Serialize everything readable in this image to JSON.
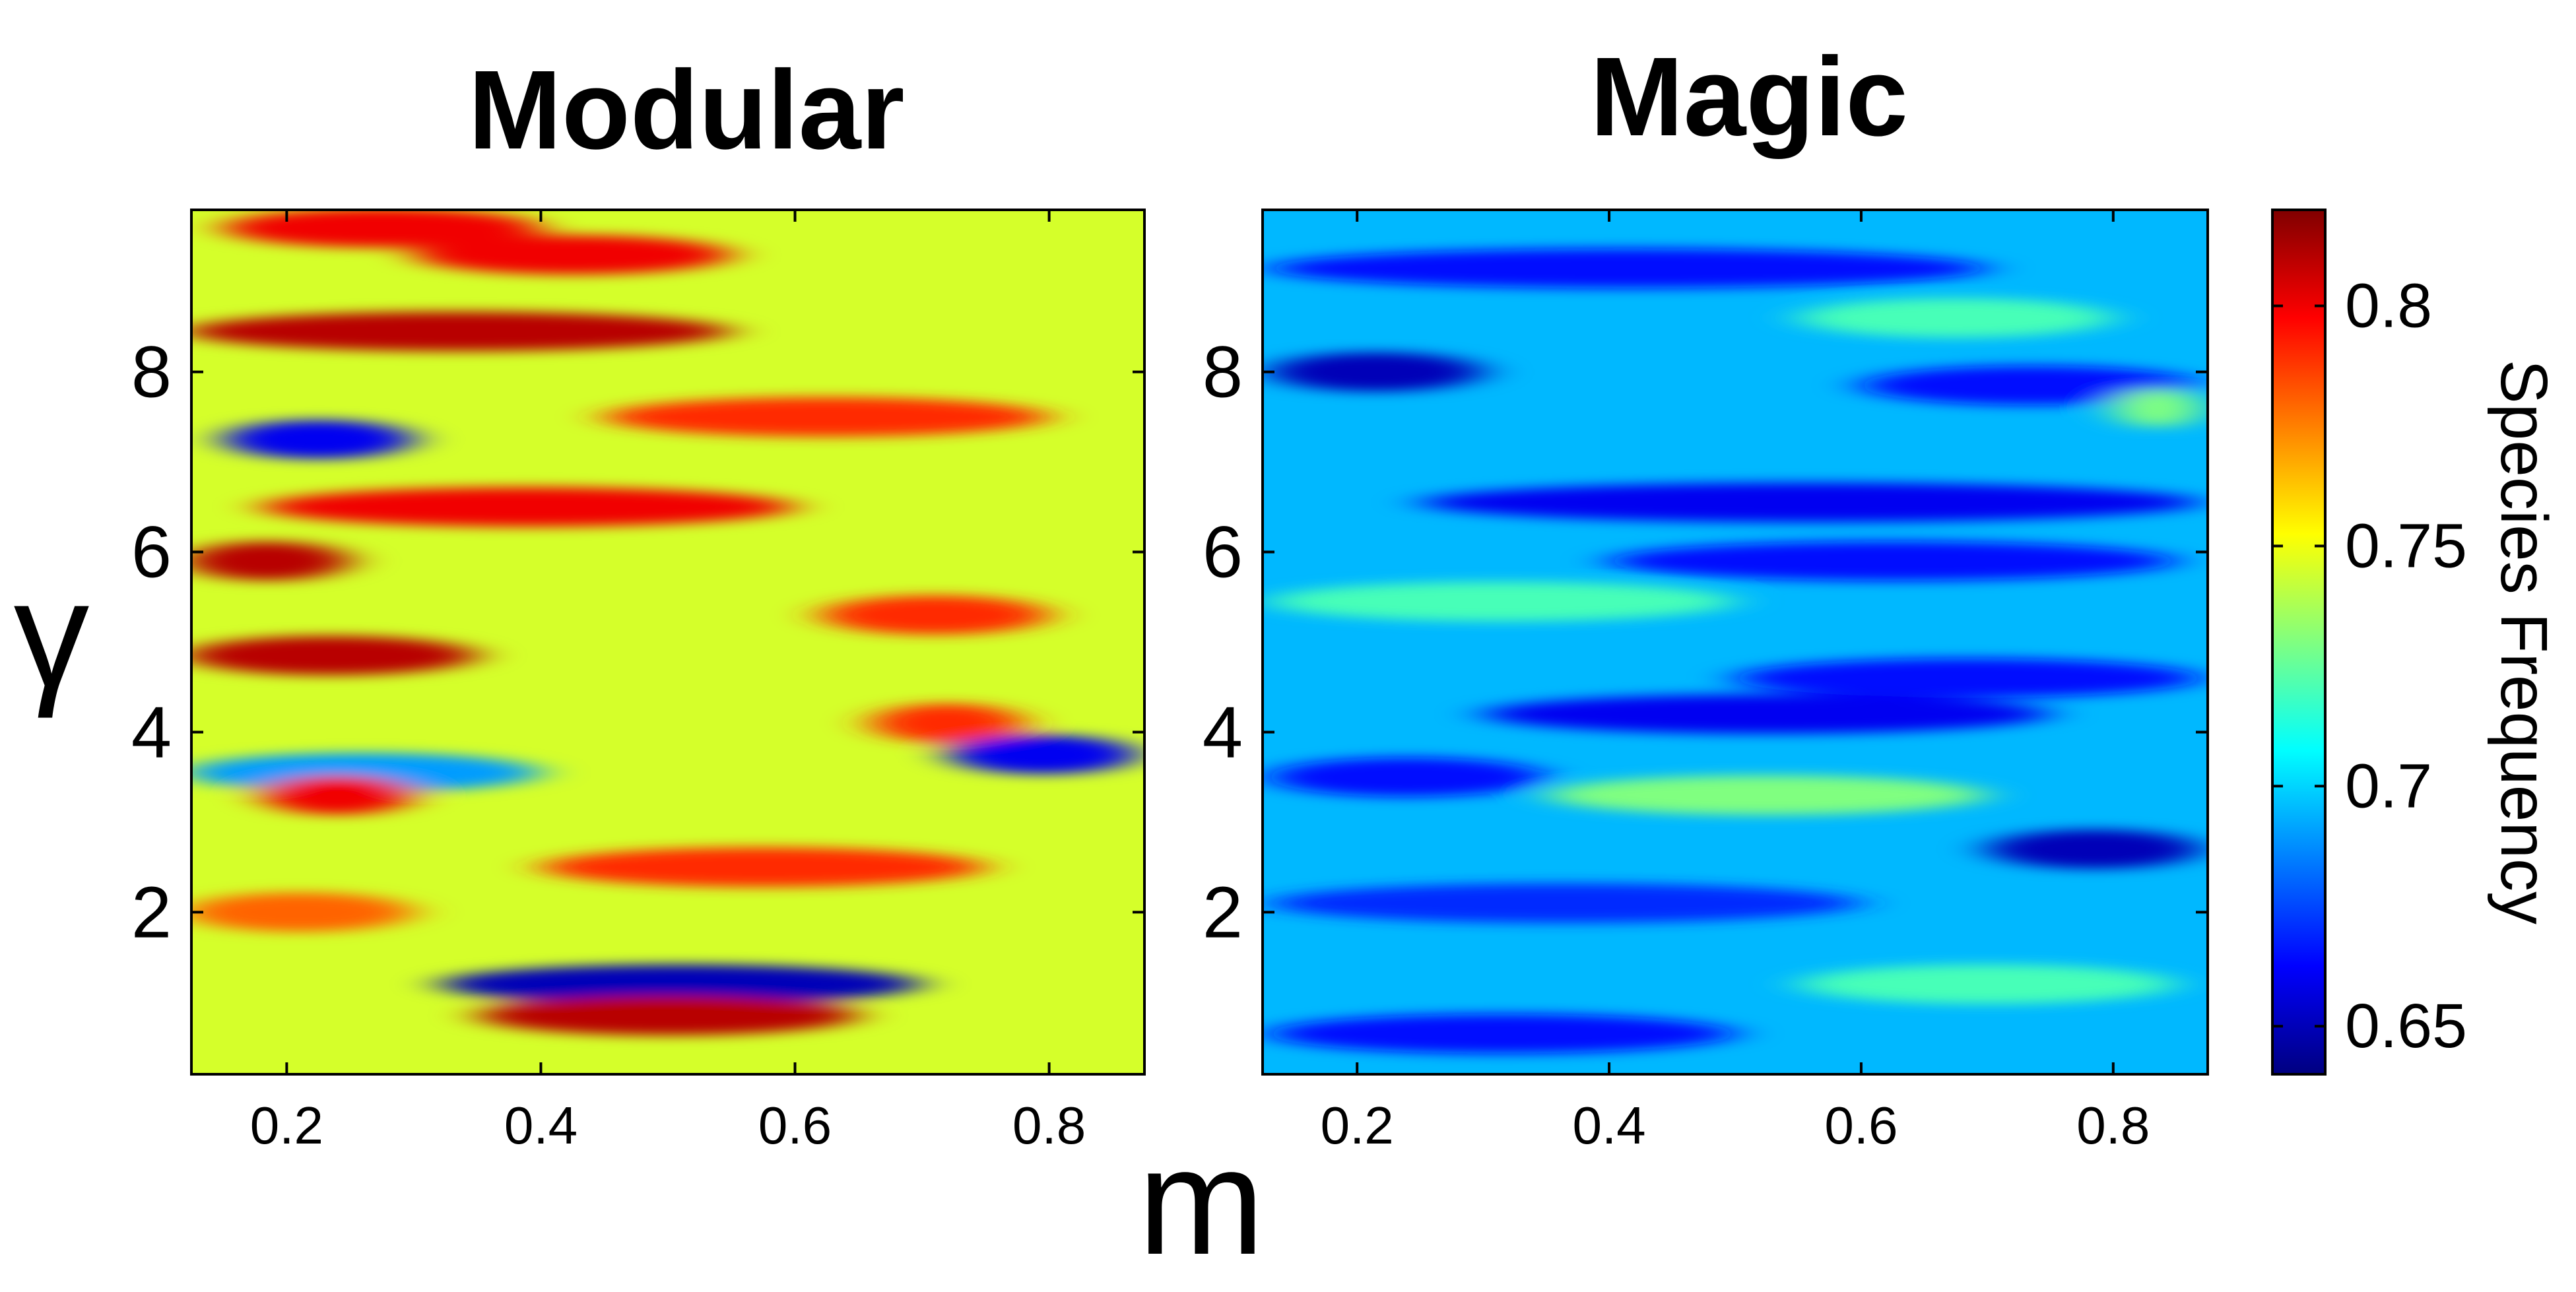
{
  "chart_data": [
    {
      "type": "heatmap",
      "title": "Modular",
      "xlabel": "m",
      "ylabel": "γ",
      "xlim": [
        0.125,
        0.875
      ],
      "ylim": [
        0.2,
        9.8
      ],
      "xticks": [
        0.2,
        0.4,
        0.6,
        0.8
      ],
      "xtick_labels": [
        "0.2",
        "0.4",
        "0.6",
        "0.8"
      ],
      "yticks": [
        2,
        4,
        6,
        8
      ],
      "ytick_labels": [
        "2",
        "4",
        "6",
        "8"
      ],
      "value_range": [
        0.64,
        0.82
      ],
      "dominant_values": "mostly 0.73-0.78, red bands up to ~0.81, blue bands down to ~0.65",
      "bands": [
        {
          "y": 9.6,
          "value": 0.8,
          "x_from": 0.15,
          "x_to": 0.4
        },
        {
          "y": 9.3,
          "value": 0.8,
          "x_from": 0.3,
          "x_to": 0.55
        },
        {
          "y": 8.45,
          "value": 0.81,
          "x_from": 0.12,
          "x_to": 0.55
        },
        {
          "y": 7.5,
          "value": 0.79,
          "x_from": 0.45,
          "x_to": 0.8
        },
        {
          "y": 7.25,
          "value": 0.66,
          "x_from": 0.15,
          "x_to": 0.3
        },
        {
          "y": 6.5,
          "value": 0.8,
          "x_from": 0.18,
          "x_to": 0.6
        },
        {
          "y": 5.9,
          "value": 0.81,
          "x_from": 0.12,
          "x_to": 0.25
        },
        {
          "y": 5.3,
          "value": 0.79,
          "x_from": 0.62,
          "x_to": 0.8
        },
        {
          "y": 4.85,
          "value": 0.81,
          "x_from": 0.12,
          "x_to": 0.35
        },
        {
          "y": 4.1,
          "value": 0.79,
          "x_from": 0.66,
          "x_to": 0.78
        },
        {
          "y": 3.75,
          "value": 0.66,
          "x_from": 0.72,
          "x_to": 0.87
        },
        {
          "y": 3.55,
          "value": 0.69,
          "x_from": 0.12,
          "x_to": 0.4
        },
        {
          "y": 3.3,
          "value": 0.8,
          "x_from": 0.18,
          "x_to": 0.3
        },
        {
          "y": 2.5,
          "value": 0.79,
          "x_from": 0.4,
          "x_to": 0.75
        },
        {
          "y": 2.0,
          "value": 0.78,
          "x_from": 0.12,
          "x_to": 0.3
        },
        {
          "y": 1.2,
          "value": 0.65,
          "x_from": 0.32,
          "x_to": 0.7
        },
        {
          "y": 0.85,
          "value": 0.81,
          "x_from": 0.35,
          "x_to": 0.65
        }
      ]
    },
    {
      "type": "heatmap",
      "title": "Magic",
      "xlabel": "m",
      "ylabel": "γ",
      "xlim": [
        0.125,
        0.875
      ],
      "ylim": [
        0.2,
        9.8
      ],
      "xticks": [
        0.2,
        0.4,
        0.6,
        0.8
      ],
      "xtick_labels": [
        "0.2",
        "0.4",
        "0.6",
        "0.8"
      ],
      "yticks": [
        2,
        4,
        6,
        8
      ],
      "ytick_labels": [
        "2",
        "4",
        "6",
        "8"
      ],
      "value_range": [
        0.64,
        0.76
      ],
      "dominant_values": "mostly 0.67-0.71, lighter cyan bands ~0.72-0.74, dark blue bands ~0.65",
      "bands": [
        {
          "y": 9.15,
          "value": 0.665,
          "x_from": 0.13,
          "x_to": 0.7
        },
        {
          "y": 8.6,
          "value": 0.72,
          "x_from": 0.55,
          "x_to": 0.8
        },
        {
          "y": 8.0,
          "value": 0.65,
          "x_from": 0.13,
          "x_to": 0.3
        },
        {
          "y": 7.85,
          "value": 0.665,
          "x_from": 0.6,
          "x_to": 0.87
        },
        {
          "y": 7.6,
          "value": 0.73,
          "x_from": 0.8,
          "x_to": 0.87
        },
        {
          "y": 6.55,
          "value": 0.66,
          "x_from": 0.25,
          "x_to": 0.87
        },
        {
          "y": 5.9,
          "value": 0.665,
          "x_from": 0.4,
          "x_to": 0.85
        },
        {
          "y": 5.45,
          "value": 0.72,
          "x_from": 0.13,
          "x_to": 0.5
        },
        {
          "y": 4.6,
          "value": 0.665,
          "x_from": 0.5,
          "x_to": 0.87
        },
        {
          "y": 4.2,
          "value": 0.66,
          "x_from": 0.3,
          "x_to": 0.75
        },
        {
          "y": 3.5,
          "value": 0.665,
          "x_from": 0.13,
          "x_to": 0.35
        },
        {
          "y": 3.3,
          "value": 0.73,
          "x_from": 0.35,
          "x_to": 0.7
        },
        {
          "y": 2.7,
          "value": 0.65,
          "x_from": 0.7,
          "x_to": 0.87
        },
        {
          "y": 2.1,
          "value": 0.67,
          "x_from": 0.13,
          "x_to": 0.6
        },
        {
          "y": 1.2,
          "value": 0.72,
          "x_from": 0.55,
          "x_to": 0.85
        },
        {
          "y": 0.65,
          "value": 0.665,
          "x_from": 0.13,
          "x_to": 0.5
        }
      ]
    }
  ],
  "colorbar": {
    "label": "Species Frequency",
    "range": [
      0.64,
      0.82
    ],
    "colormap": "jet",
    "ticks": [
      0.65,
      0.7,
      0.75,
      0.8
    ],
    "tick_labels": [
      "0.65",
      "0.7",
      "0.75",
      "0.8"
    ]
  },
  "labels": {
    "shared_xlabel": "m",
    "shared_ylabel": "γ"
  }
}
